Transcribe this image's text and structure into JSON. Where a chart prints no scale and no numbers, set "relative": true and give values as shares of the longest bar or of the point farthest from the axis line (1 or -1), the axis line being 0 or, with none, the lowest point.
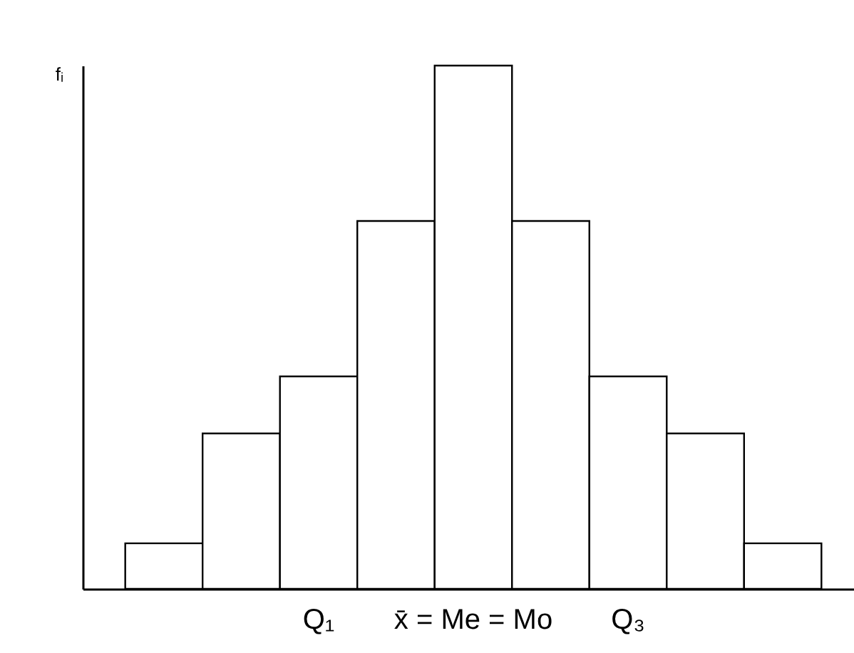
{
  "chart_data": {
    "type": "bar",
    "relative": true,
    "ylabel": "fᵢ",
    "categories": [
      null,
      null,
      null,
      null,
      null,
      null,
      null,
      null,
      null
    ],
    "values": [
      0.087,
      0.297,
      0.406,
      0.703,
      1,
      0.703,
      0.406,
      0.297,
      0.087
    ],
    "color": "#ffffff",
    "annotations": [
      "Q₁",
      "x̄ = Me = Mo",
      "Q₃"
    ],
    "grid": false
  }
}
